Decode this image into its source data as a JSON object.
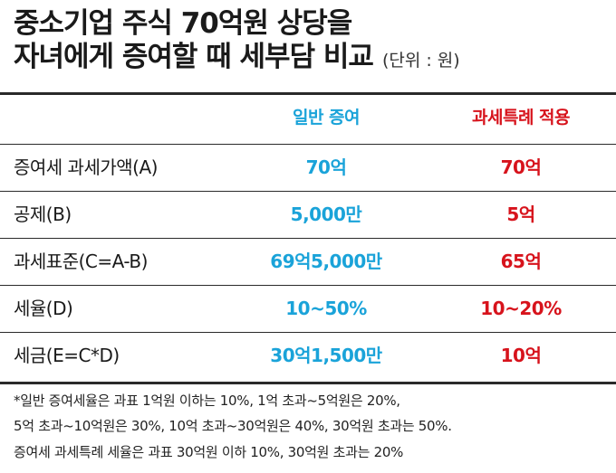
{
  "title": {
    "line1": "중소기업 주식 70억원 상당을",
    "line2": "자녀에게 증여할 때 세부담 비교",
    "unit": "(단위 : 원)"
  },
  "colors": {
    "general": "#1aa3d9",
    "special": "#d7131c",
    "rule": "#2a2a2a"
  },
  "table": {
    "headers": {
      "general": "일반 증여",
      "special": "과세특례 적용"
    },
    "rows": [
      {
        "label": "증여세 과세가액(A)",
        "general": "70억",
        "special": "70억"
      },
      {
        "label": "공제(B)",
        "general": "5,000만",
        "special": "5억"
      },
      {
        "label": "과세표준(C=A-B)",
        "general": "69억5,000만",
        "special": "65억"
      },
      {
        "label": "세율(D)",
        "general": "10~50%",
        "special": "10~20%"
      },
      {
        "label": "세금(E=C*D)",
        "general": "30억1,500만",
        "special": "10억"
      }
    ]
  },
  "footnote": {
    "line1": "*일반 증여세율은 과표 1억원 이하는 10%, 1억 초과~5억원은 20%,",
    "line2": "5억 초과~10억원은 30%, 10억 초과~30억원은 40%, 30억원 초과는 50%.",
    "line3": "증여세 과세특례 세율은 과표 30억원 이하 10%, 30억원 초과는 20%"
  }
}
